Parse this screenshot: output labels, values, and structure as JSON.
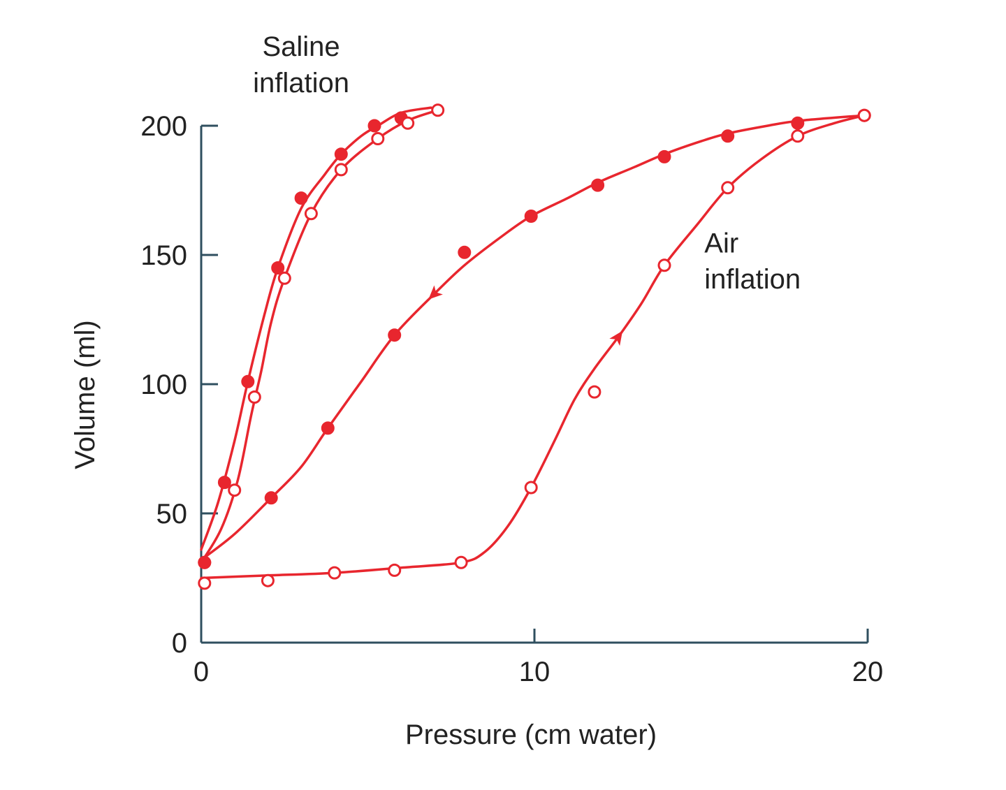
{
  "colors": {
    "curve": "#e8262e",
    "axis": "#2f4f5f",
    "text": "#222222",
    "background": "#ffffff"
  },
  "chart_data": {
    "type": "line",
    "title": "",
    "xlabel": "Pressure (cm water)",
    "ylabel": "Volume (ml)",
    "xlim": [
      0,
      20
    ],
    "ylim": [
      0,
      200
    ],
    "x_ticks": [
      {
        "value": 0,
        "label": "0"
      },
      {
        "value": 10,
        "label": "10"
      },
      {
        "value": 20,
        "label": "20"
      }
    ],
    "y_ticks": [
      {
        "value": 0,
        "label": "0"
      },
      {
        "value": 50,
        "label": "50"
      },
      {
        "value": 100,
        "label": "100"
      },
      {
        "value": 150,
        "label": "150"
      },
      {
        "value": 200,
        "label": "200"
      }
    ],
    "grid": false,
    "annotations": [
      {
        "text": "Saline",
        "x": 3.0,
        "y": 227
      },
      {
        "text": "inflation",
        "x": 3.0,
        "y": 213
      },
      {
        "text": "Air",
        "x": 15.1,
        "y": 151
      },
      {
        "text": "inflation",
        "x": 15.1,
        "y": 137
      }
    ],
    "series": [
      {
        "group": "saline",
        "direction": "deflation",
        "marker": "filled",
        "arrow_at": null,
        "points": [
          [
            0.1,
            31
          ],
          [
            0.7,
            62
          ],
          [
            1.4,
            101
          ],
          [
            2.3,
            145
          ],
          [
            3.0,
            172
          ],
          [
            4.2,
            189
          ],
          [
            5.2,
            200
          ],
          [
            6.0,
            203
          ]
        ],
        "curve": [
          [
            0,
            36
          ],
          [
            0.5,
            54
          ],
          [
            1.0,
            78
          ],
          [
            1.4,
            101
          ],
          [
            1.9,
            127
          ],
          [
            2.3,
            145
          ],
          [
            3.0,
            168
          ],
          [
            3.7,
            181
          ],
          [
            4.2,
            189
          ],
          [
            4.8,
            196
          ],
          [
            5.3,
            200
          ],
          [
            6.0,
            205
          ],
          [
            6.9,
            207
          ]
        ]
      },
      {
        "group": "saline",
        "direction": "inflation",
        "marker": "open",
        "arrow_at": null,
        "points": [
          [
            1.0,
            59
          ],
          [
            1.6,
            95
          ],
          [
            2.5,
            141
          ],
          [
            3.3,
            166
          ],
          [
            4.2,
            183
          ],
          [
            5.3,
            195
          ],
          [
            6.2,
            201
          ],
          [
            7.1,
            206
          ]
        ],
        "curve": [
          [
            0,
            31
          ],
          [
            0.6,
            44
          ],
          [
            1.1,
            63
          ],
          [
            1.5,
            88
          ],
          [
            1.8,
            105
          ],
          [
            2.1,
            124
          ],
          [
            2.5,
            141
          ],
          [
            3.3,
            166
          ],
          [
            4.2,
            183
          ],
          [
            5.3,
            195
          ],
          [
            6.2,
            202
          ],
          [
            7.1,
            206
          ]
        ]
      },
      {
        "group": "air",
        "direction": "deflation",
        "marker": "filled",
        "arrow_at": 7.0,
        "points": [
          [
            0.1,
            31
          ],
          [
            2.1,
            56
          ],
          [
            3.8,
            83
          ],
          [
            5.8,
            119
          ],
          [
            7.9,
            151
          ],
          [
            9.9,
            165
          ],
          [
            11.9,
            177
          ],
          [
            13.9,
            188
          ],
          [
            15.8,
            196
          ],
          [
            17.9,
            201
          ],
          [
            19.9,
            204
          ]
        ],
        "curve": [
          [
            0,
            32
          ],
          [
            1.0,
            42
          ],
          [
            2.1,
            56
          ],
          [
            3.0,
            68
          ],
          [
            3.8,
            83
          ],
          [
            4.8,
            101
          ],
          [
            5.8,
            119
          ],
          [
            7.0,
            135
          ],
          [
            7.9,
            146
          ],
          [
            9.0,
            157
          ],
          [
            9.9,
            165
          ],
          [
            11.0,
            172
          ],
          [
            11.9,
            178
          ],
          [
            13.0,
            184
          ],
          [
            13.9,
            189
          ],
          [
            15.0,
            194
          ],
          [
            15.8,
            197
          ],
          [
            17.0,
            200
          ],
          [
            18.0,
            202
          ],
          [
            19.9,
            204
          ]
        ]
      },
      {
        "group": "air",
        "direction": "inflation",
        "marker": "open",
        "arrow_at": 12.5,
        "points": [
          [
            0.1,
            23
          ],
          [
            2.0,
            24
          ],
          [
            4.0,
            27
          ],
          [
            5.8,
            28
          ],
          [
            7.8,
            31
          ],
          [
            9.9,
            60
          ],
          [
            11.8,
            97
          ],
          [
            13.9,
            146
          ],
          [
            15.8,
            176
          ],
          [
            17.9,
            196
          ],
          [
            19.9,
            204
          ]
        ],
        "curve": [
          [
            0,
            25
          ],
          [
            2.0,
            26
          ],
          [
            4.0,
            27
          ],
          [
            6.0,
            29
          ],
          [
            7.8,
            31
          ],
          [
            8.5,
            35
          ],
          [
            9.2,
            45
          ],
          [
            9.9,
            60
          ],
          [
            10.6,
            78
          ],
          [
            11.2,
            94
          ],
          [
            11.8,
            106
          ],
          [
            12.5,
            118
          ],
          [
            13.2,
            131
          ],
          [
            13.9,
            146
          ],
          [
            14.9,
            162
          ],
          [
            15.8,
            176
          ],
          [
            16.8,
            187
          ],
          [
            17.9,
            196
          ],
          [
            19.0,
            201
          ],
          [
            19.9,
            204
          ]
        ]
      }
    ]
  }
}
